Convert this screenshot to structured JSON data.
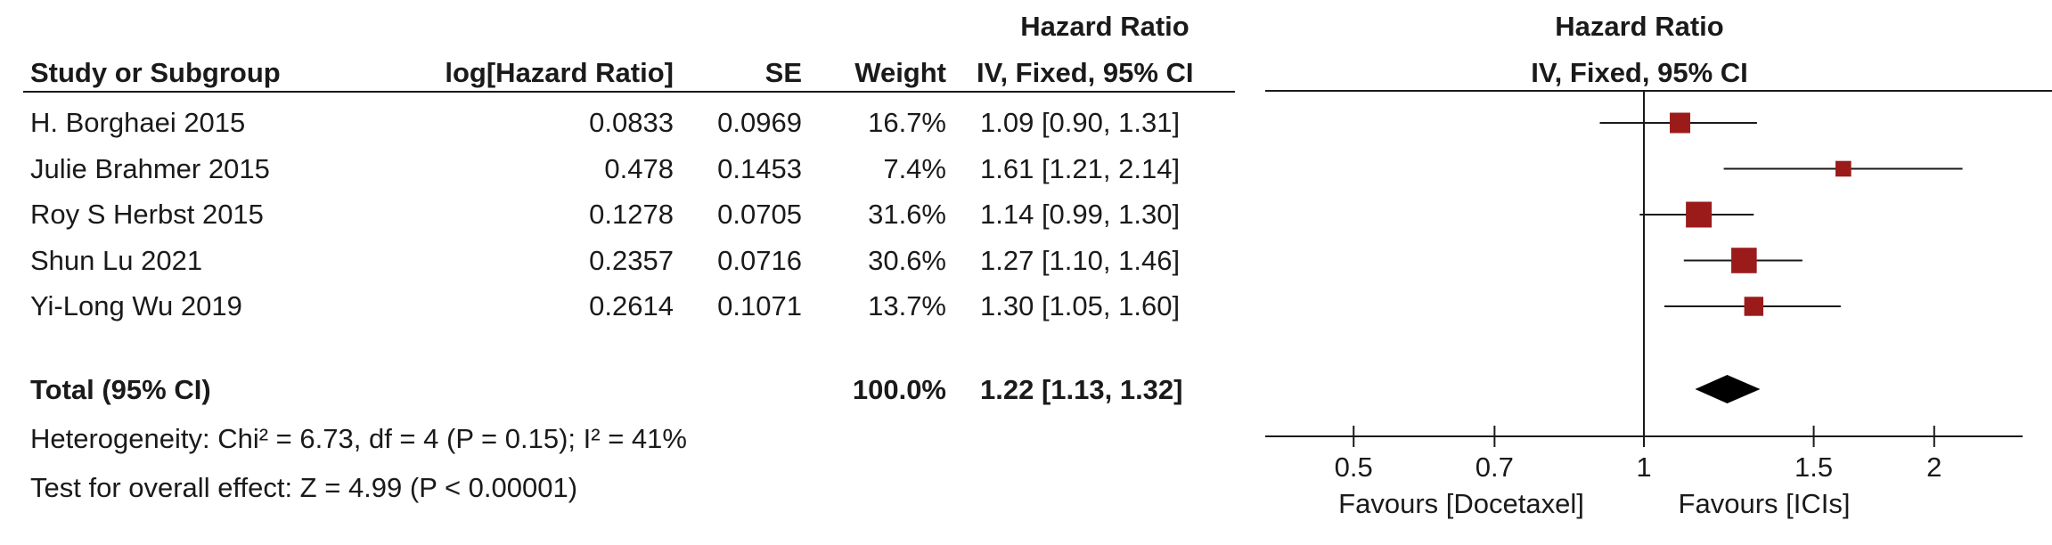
{
  "table": {
    "header_group": "Hazard Ratio",
    "headers": {
      "study": "Study or Subgroup",
      "loghr": "log[Hazard Ratio]",
      "se": "SE",
      "weight": "Weight",
      "ci": "IV, Fixed, 95% CI"
    },
    "rows": [
      {
        "study": "H. Borghaei 2015",
        "loghr": "0.0833",
        "se": "0.0969",
        "weight": "16.7%",
        "ci": "1.09 [0.90, 1.31]"
      },
      {
        "study": "Julie Brahmer 2015",
        "loghr": "0.478",
        "se": "0.1453",
        "weight": "7.4%",
        "ci": "1.61 [1.21, 2.14]"
      },
      {
        "study": "Roy S Herbst 2015",
        "loghr": "0.1278",
        "se": "0.0705",
        "weight": "31.6%",
        "ci": "1.14 [0.99, 1.30]"
      },
      {
        "study": "Shun Lu 2021",
        "loghr": "0.2357",
        "se": "0.0716",
        "weight": "30.6%",
        "ci": "1.27 [1.10, 1.46]"
      },
      {
        "study": "Yi-Long Wu 2019",
        "loghr": "0.2614",
        "se": "0.1071",
        "weight": "13.7%",
        "ci": "1.30 [1.05, 1.60]"
      }
    ],
    "total": {
      "label": "Total (95% CI)",
      "weight": "100.0%",
      "ci": "1.22 [1.13, 1.32]"
    },
    "heterogeneity": "Heterogeneity: Chi² = 6.73, df = 4 (P = 0.15); I² = 41%",
    "overall_effect": "Test for overall effect: Z = 4.99 (P < 0.00001)"
  },
  "chart_data": {
    "type": "scatter",
    "title": "Hazard Ratio",
    "subtitle": "IV, Fixed, 95% CI",
    "x_scale": "log",
    "xlim": [
      0.4,
      2.5
    ],
    "x_ticks": [
      0.5,
      0.7,
      1,
      1.5,
      2
    ],
    "x_tick_labels": [
      "0.5",
      "0.7",
      "1",
      "1.5",
      "2"
    ],
    "reference_line": 1,
    "favours_left": "Favours [Docetaxel]",
    "favours_right": "Favours [ICIs]",
    "studies": [
      {
        "name": "H. Borghaei 2015",
        "hr": 1.09,
        "lower": 0.9,
        "upper": 1.31,
        "weight": 16.7
      },
      {
        "name": "Julie Brahmer 2015",
        "hr": 1.61,
        "lower": 1.21,
        "upper": 2.14,
        "weight": 7.4
      },
      {
        "name": "Roy S Herbst 2015",
        "hr": 1.14,
        "lower": 0.99,
        "upper": 1.3,
        "weight": 31.6
      },
      {
        "name": "Shun Lu 2021",
        "hr": 1.27,
        "lower": 1.1,
        "upper": 1.46,
        "weight": 30.6
      },
      {
        "name": "Yi-Long Wu 2019",
        "hr": 1.3,
        "lower": 1.05,
        "upper": 1.6,
        "weight": 13.7
      }
    ],
    "total": {
      "hr": 1.22,
      "lower": 1.13,
      "upper": 1.32
    },
    "colors": {
      "marker": "#9b1b1b",
      "line": "#1a1a1a",
      "diamond": "#000000"
    }
  }
}
